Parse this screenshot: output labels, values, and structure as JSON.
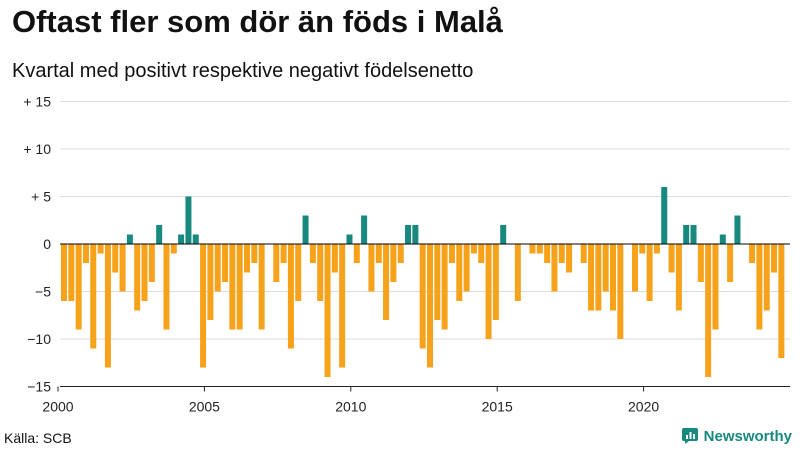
{
  "title": "Oftast fler som dör än föds i Malå",
  "subtitle": "Kvartal med positivt respektive negativt födelsenetto",
  "source": "Källa: SCB",
  "brand": "Newsworthy",
  "colors": {
    "positive": "#17897f",
    "negative": "#f7a21b",
    "zero_line": "#000000",
    "grid": "#dddddd",
    "brand": "#17897f"
  },
  "chart_data": {
    "type": "bar",
    "title": "Oftast fler som dör än föds i Malå",
    "subtitle": "Kvartal med positivt respektive negativt födelsenetto",
    "xlabel": "",
    "ylabel": "",
    "ylim": [
      -15,
      15
    ],
    "y_ticks": [
      15,
      10,
      5,
      0,
      -5,
      -10,
      -15
    ],
    "y_tick_labels": [
      "+ 15",
      "+ 10",
      "+  5",
      "0",
      "−5",
      "−10",
      "−15"
    ],
    "x_ticks": [
      2000,
      2005,
      2010,
      2015,
      2020
    ],
    "x_tick_labels": [
      "2000",
      "2005",
      "2010",
      "2015",
      "2020"
    ],
    "start_year": 2000,
    "period": "quarter",
    "values": [
      -6,
      -6,
      -9,
      -2,
      -11,
      -1,
      -13,
      -3,
      -5,
      1,
      -7,
      -6,
      -4,
      2,
      -9,
      -1,
      1,
      5,
      1,
      -13,
      -8,
      -5,
      -4,
      -9,
      -9,
      -3,
      -2,
      -9,
      0,
      -4,
      -2,
      -11,
      -6,
      3,
      -2,
      -6,
      -14,
      -3,
      -13,
      1,
      -2,
      3,
      -5,
      -2,
      -8,
      -4,
      -2,
      2,
      2,
      -11,
      -13,
      -8,
      -9,
      -2,
      -6,
      -5,
      -1,
      -2,
      -10,
      -8,
      2,
      0,
      -6,
      0,
      -1,
      -1,
      -2,
      -5,
      -2,
      -3,
      0,
      -2,
      -7,
      -7,
      -5,
      -7,
      -10,
      0,
      -5,
      -1,
      -6,
      -1,
      6,
      -3,
      -7,
      2,
      2,
      -4,
      -14,
      -9,
      1,
      -4,
      3,
      0,
      -2,
      -9,
      -7,
      -3,
      -12
    ]
  }
}
